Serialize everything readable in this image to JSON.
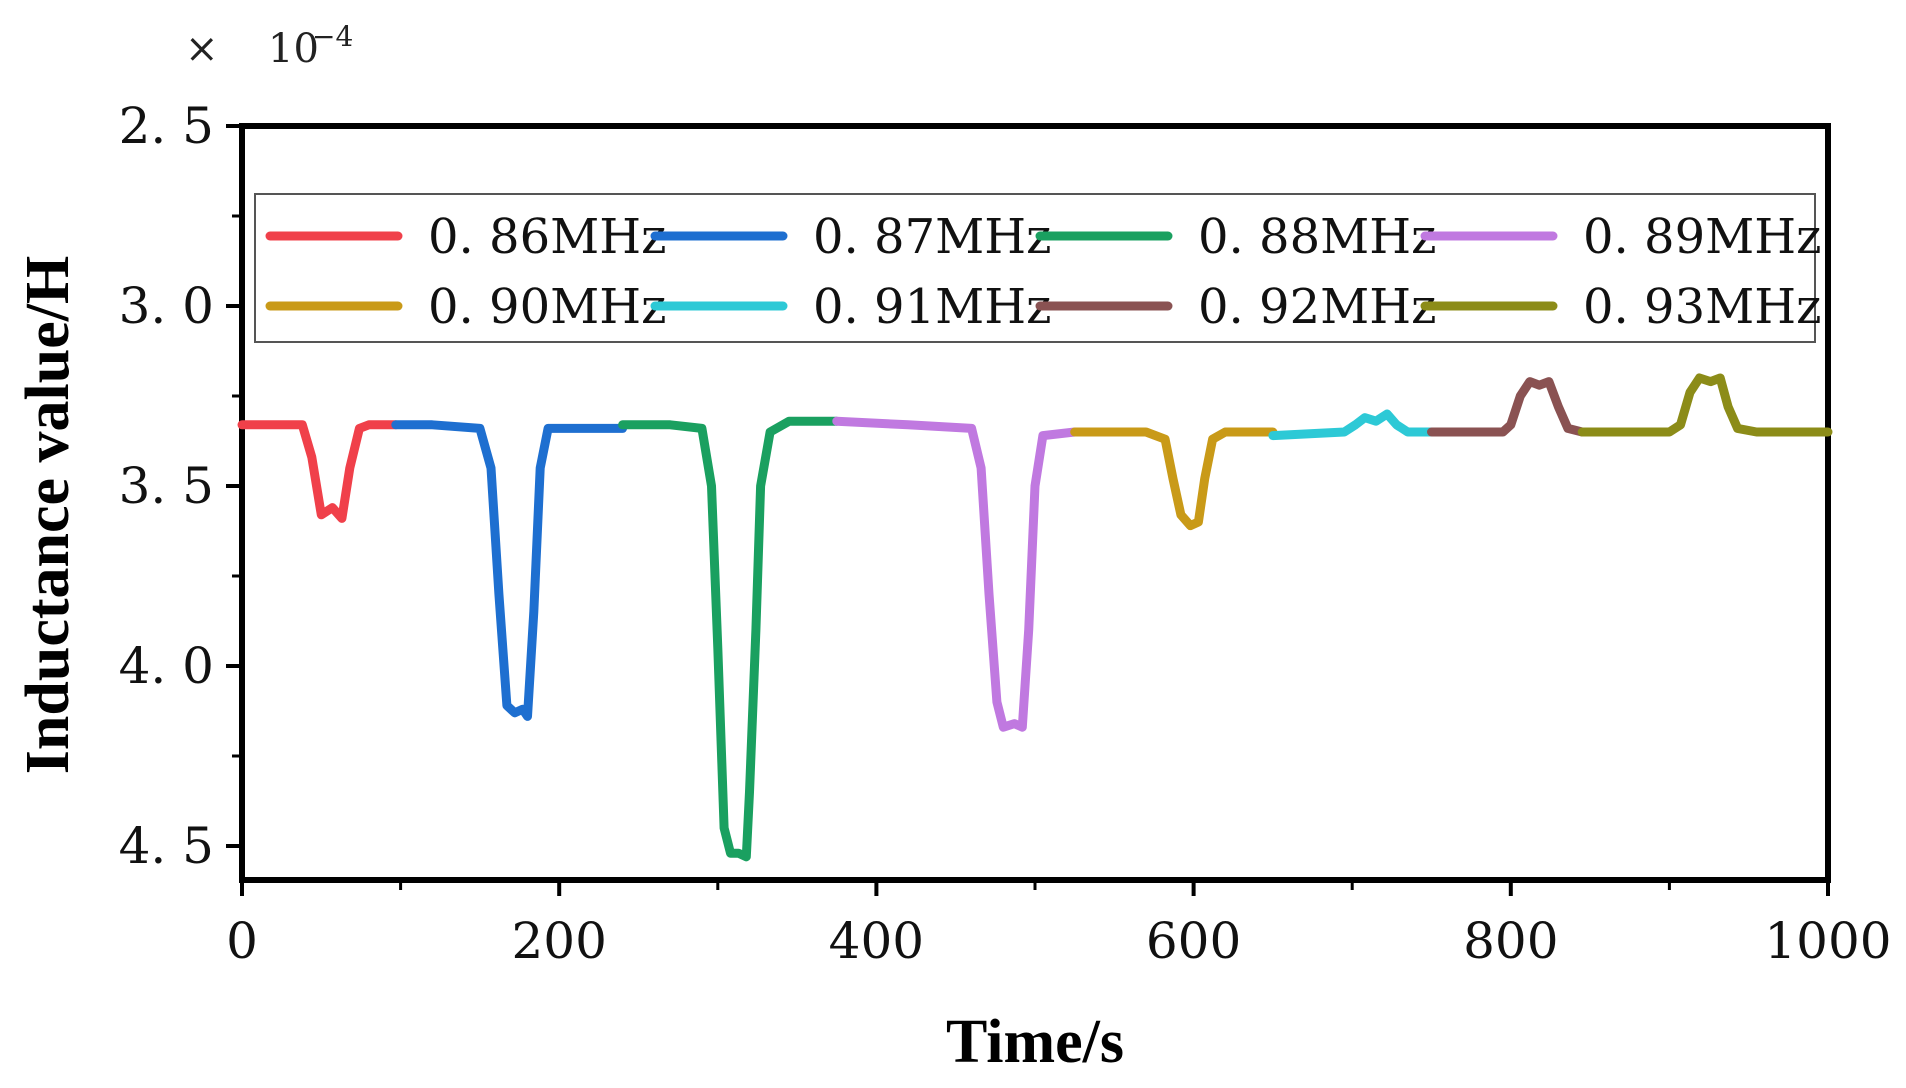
{
  "chart_data": {
    "type": "line",
    "title": "",
    "xlabel": "Time/s",
    "ylabel": "Inductance value/H",
    "y_multiplier": "10",
    "y_multiplier_exponent": "−4",
    "y_multiplier_symbol": "×",
    "xlim": [
      0,
      1000
    ],
    "ylim": [
      2.5,
      4.6
    ],
    "y_inverted": true,
    "x_ticks": [
      0,
      200,
      400,
      600,
      800,
      1000
    ],
    "x_tick_labels": [
      "0",
      "200",
      "400",
      "600",
      "800",
      "1000"
    ],
    "y_ticks": [
      2.5,
      3.0,
      3.5,
      4.0,
      4.5
    ],
    "y_tick_labels": [
      "2. 5",
      "3. 0",
      "3. 5",
      "4. 0",
      "4. 5"
    ],
    "grid": false,
    "legend_position": "top",
    "series": [
      {
        "name": "0. 86MHz",
        "color": "#f0404a",
        "x": [
          0,
          38,
          44,
          50,
          57,
          63,
          68,
          74,
          80,
          97
        ],
        "y": [
          3.33,
          3.33,
          3.42,
          3.58,
          3.56,
          3.59,
          3.45,
          3.34,
          3.33,
          3.33
        ]
      },
      {
        "name": "0. 87MHz",
        "color": "#1e6fd0",
        "x": [
          97,
          120,
          150,
          157,
          162,
          167,
          172,
          177,
          180,
          184,
          188,
          193,
          240
        ],
        "y": [
          3.33,
          3.33,
          3.34,
          3.45,
          3.8,
          4.11,
          4.13,
          4.12,
          4.14,
          3.85,
          3.45,
          3.34,
          3.34
        ]
      },
      {
        "name": "0. 88MHz",
        "color": "#1aa060",
        "x": [
          240,
          270,
          290,
          296,
          300,
          304,
          308,
          313,
          318,
          320,
          324,
          327,
          333,
          345,
          375
        ],
        "y": [
          3.33,
          3.33,
          3.34,
          3.5,
          3.95,
          4.45,
          4.52,
          4.52,
          4.53,
          4.35,
          3.9,
          3.5,
          3.35,
          3.32,
          3.32
        ]
      },
      {
        "name": "0. 89MHz",
        "color": "#c079e0",
        "x": [
          375,
          420,
          460,
          466,
          471,
          476,
          480,
          487,
          492,
          496,
          500,
          505,
          525
        ],
        "y": [
          3.32,
          3.33,
          3.34,
          3.45,
          3.8,
          4.1,
          4.17,
          4.16,
          4.17,
          3.9,
          3.5,
          3.36,
          3.35
        ]
      },
      {
        "name": "0. 90MHz",
        "color": "#c99a18",
        "x": [
          525,
          570,
          582,
          587,
          592,
          598,
          603,
          607,
          612,
          620,
          650
        ],
        "y": [
          3.35,
          3.35,
          3.37,
          3.48,
          3.58,
          3.61,
          3.6,
          3.48,
          3.37,
          3.35,
          3.35
        ]
      },
      {
        "name": "0. 91MHz",
        "color": "#2dc9d6",
        "x": [
          650,
          695,
          702,
          708,
          715,
          722,
          728,
          735,
          750
        ],
        "y": [
          3.36,
          3.35,
          3.33,
          3.31,
          3.32,
          3.3,
          3.33,
          3.35,
          3.35
        ]
      },
      {
        "name": "0. 92MHz",
        "color": "#8a5252",
        "x": [
          750,
          795,
          800,
          806,
          812,
          818,
          824,
          830,
          836,
          845
        ],
        "y": [
          3.35,
          3.35,
          3.33,
          3.25,
          3.21,
          3.22,
          3.21,
          3.28,
          3.34,
          3.35
        ]
      },
      {
        "name": "0. 93MHz",
        "color": "#8c8c18",
        "x": [
          845,
          900,
          907,
          913,
          919,
          926,
          932,
          937,
          943,
          955,
          1000
        ],
        "y": [
          3.35,
          3.35,
          3.33,
          3.24,
          3.2,
          3.21,
          3.2,
          3.28,
          3.34,
          3.35,
          3.35
        ]
      }
    ]
  }
}
